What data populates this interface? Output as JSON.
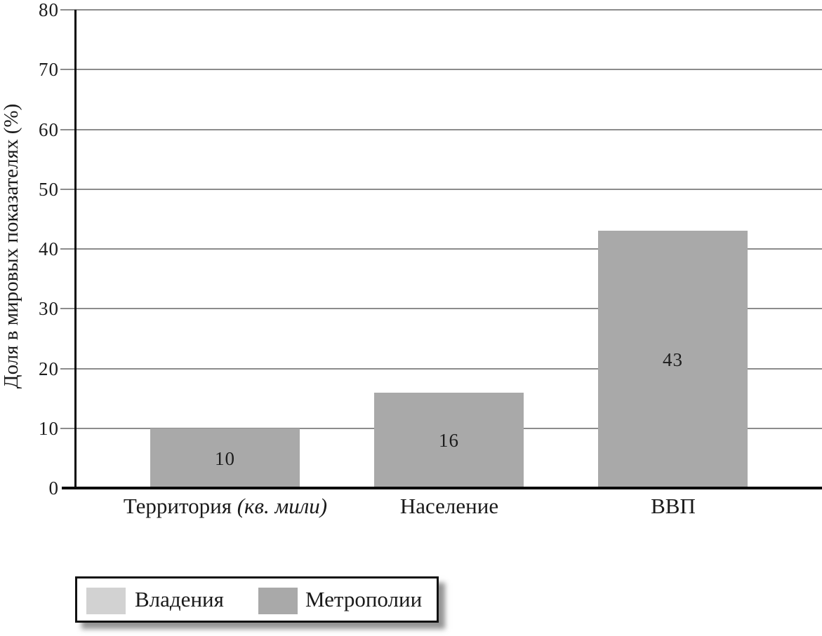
{
  "chart_data": {
    "type": "bar",
    "title": "",
    "ylabel": "Доля в мировых показателях (%)",
    "xlabel": "",
    "ylim": [
      0,
      80
    ],
    "yticks": [
      0,
      10,
      20,
      30,
      40,
      50,
      60,
      70,
      80
    ],
    "grid": "horizontal",
    "grid_color": "#8c8c8c",
    "axis_color": "#0a0a0a",
    "categories": [
      {
        "text": "Территория ",
        "italic": "(кв. мили)"
      },
      {
        "text": "Население",
        "italic": ""
      },
      {
        "text": "ВВП",
        "italic": ""
      }
    ],
    "series": [
      {
        "name": "Владения",
        "color": "#d2d2d2",
        "values": []
      },
      {
        "name": "Метрополии",
        "color": "#a9a9a9",
        "values": [
          10,
          16,
          43
        ]
      }
    ],
    "bar_value_labels": [
      "10",
      "16",
      "43"
    ],
    "legend_position": "bottom-left"
  }
}
